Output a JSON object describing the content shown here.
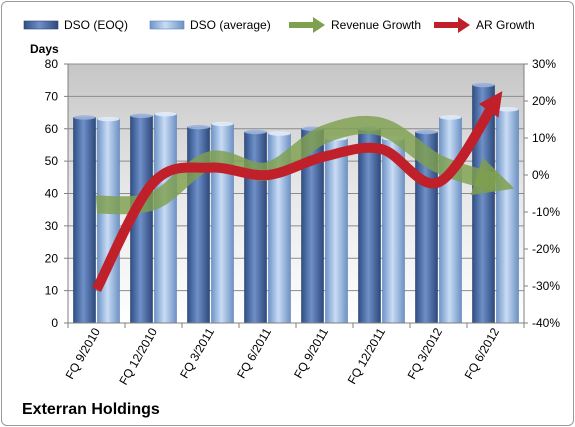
{
  "chart_data": {
    "type": "bar",
    "title": "Exterran Holdings",
    "ylabel": "Days",
    "categories": [
      "FQ 9/2010",
      "FQ 12/2010",
      "FQ 3/2011",
      "FQ 6/2011",
      "FQ 9/2011",
      "FQ 12/2011",
      "FQ 3/2012",
      "FQ 6/2012"
    ],
    "ylim": [
      0,
      80
    ],
    "y_ticks": [
      "0",
      "10",
      "20",
      "30",
      "40",
      "50",
      "60",
      "70",
      "80"
    ],
    "y2lim": [
      -40,
      30
    ],
    "y2_ticks": [
      "-40%",
      "-30%",
      "-20%",
      "-10%",
      "0%",
      "10%",
      "20%",
      "30%"
    ],
    "series": [
      {
        "name": "DSO (EOQ)",
        "kind": "bar",
        "color": "#4f6fa8",
        "values": [
          63.5,
          64,
          60.5,
          59,
          60,
          60,
          59,
          73.5
        ]
      },
      {
        "name": "DSO (average)",
        "kind": "bar",
        "color": "#8fb4e3",
        "values": [
          63,
          64.5,
          61.5,
          58.5,
          57,
          57,
          63.5,
          66
        ]
      },
      {
        "name": "Revenue Growth",
        "kind": "line",
        "axis": "secondary",
        "color": "#7fa04e",
        "values": [
          -8,
          -7,
          4,
          1,
          11,
          13,
          3,
          -2
        ]
      },
      {
        "name": "AR Growth",
        "kind": "line",
        "axis": "secondary",
        "color": "#c0202a",
        "values": [
          -31,
          -2,
          2,
          0,
          5,
          7,
          -2,
          20
        ]
      }
    ],
    "grid": true,
    "legend_position": "top"
  }
}
